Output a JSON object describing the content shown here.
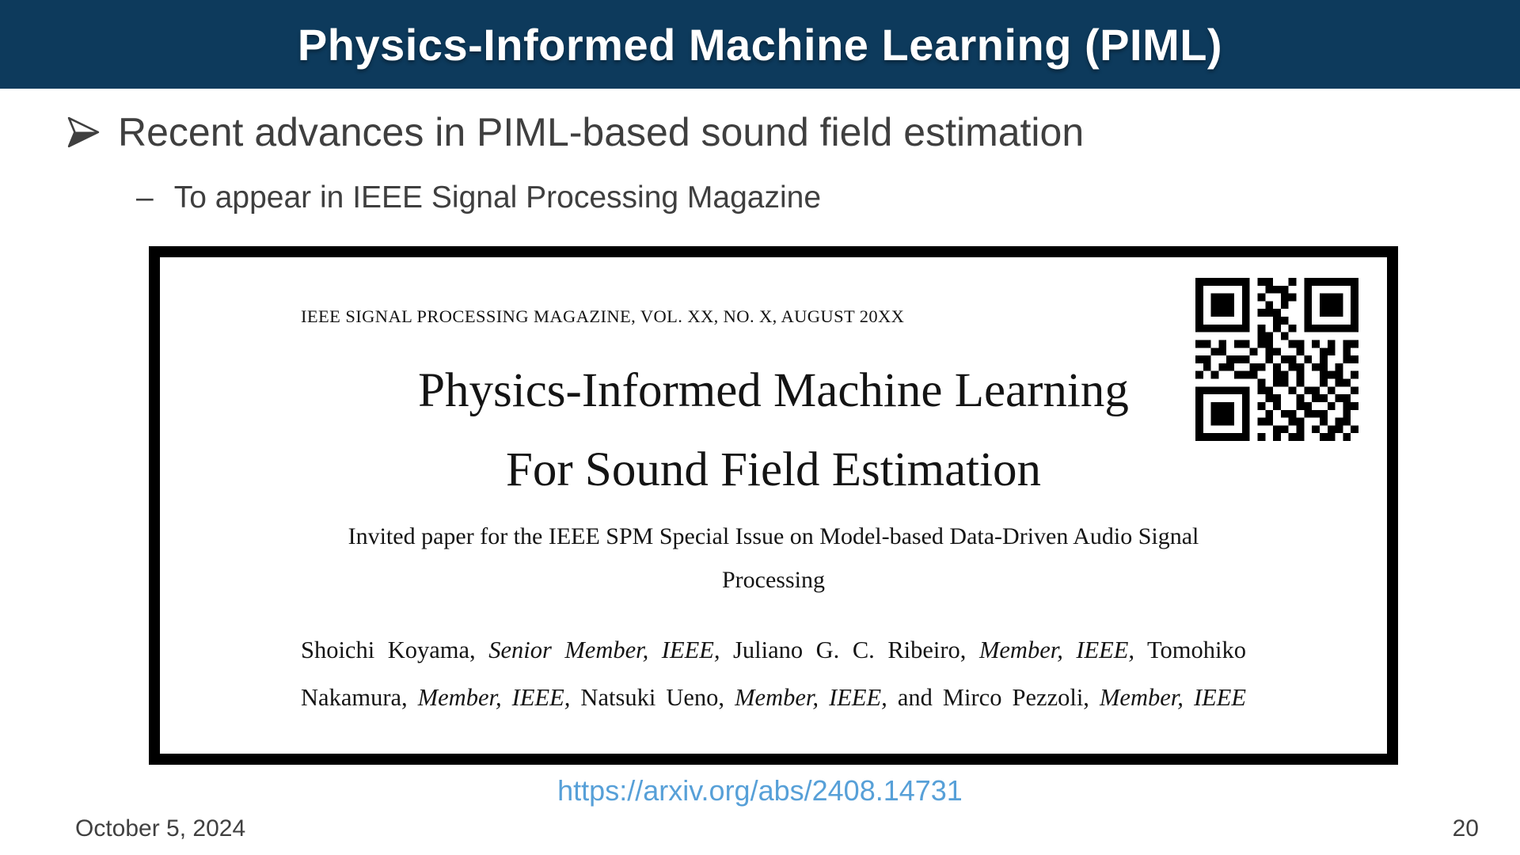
{
  "slide": {
    "header": {
      "title": "Physics-Informed Machine Learning (PIML)",
      "bg_color": "#0d3a5c",
      "text_color": "#ffffff"
    },
    "bullets": {
      "main": "Recent advances in PIML-based sound field estimation",
      "sub_dash": "–",
      "sub": "To appear in IEEE Signal Processing Magazine"
    },
    "paper": {
      "journal_header": "IEEE SIGNAL PROCESSING MAGAZINE, VOL. XX, NO. X, AUGUST 20XX",
      "title_line1": "Physics-Informed Machine Learning",
      "title_line2": "For Sound Field Estimation",
      "subtitle_line1": "Invited paper for the IEEE SPM Special Issue on Model-based Data-Driven Audio Signal",
      "subtitle_line2": "Processing",
      "authors_line1": [
        "Shoichi Koyama, ",
        "Senior Member, IEEE,",
        " Juliano G. C. Ribeiro, ",
        "Member, IEEE,",
        " Tomohiko"
      ],
      "authors_line2": [
        "Nakamura, ",
        "Member, IEEE,",
        " Natsuki Ueno, ",
        "Member, IEEE,",
        " and Mirco Pezzoli, ",
        "Member, IEEE"
      ],
      "qr_code": {
        "label": "qr-code",
        "modules": [
          "111111101100101111111",
          "100000100111001000001",
          "101110101001101011101",
          "101110100101001011101",
          "101110101110001011101",
          "100000100011001000001",
          "111111101010101111111",
          "000000001101000000000",
          "110101101100110101011",
          "001100010110010011010",
          "110011100101101010011",
          "010110011010110110100",
          "101001110011010011101",
          "000000001011010010110",
          "111111101100101101001",
          "100000100110010110110",
          "101110101010011001011",
          "101110100101101110010",
          "101110101100110010110",
          "100000100011010101101",
          "111111101010110011010"
        ]
      }
    },
    "link": {
      "url": "https://arxiv.org/abs/2408.14731",
      "color": "#57a0d8"
    },
    "footer": {
      "date": "October 5, 2024",
      "page_number": "20"
    }
  }
}
